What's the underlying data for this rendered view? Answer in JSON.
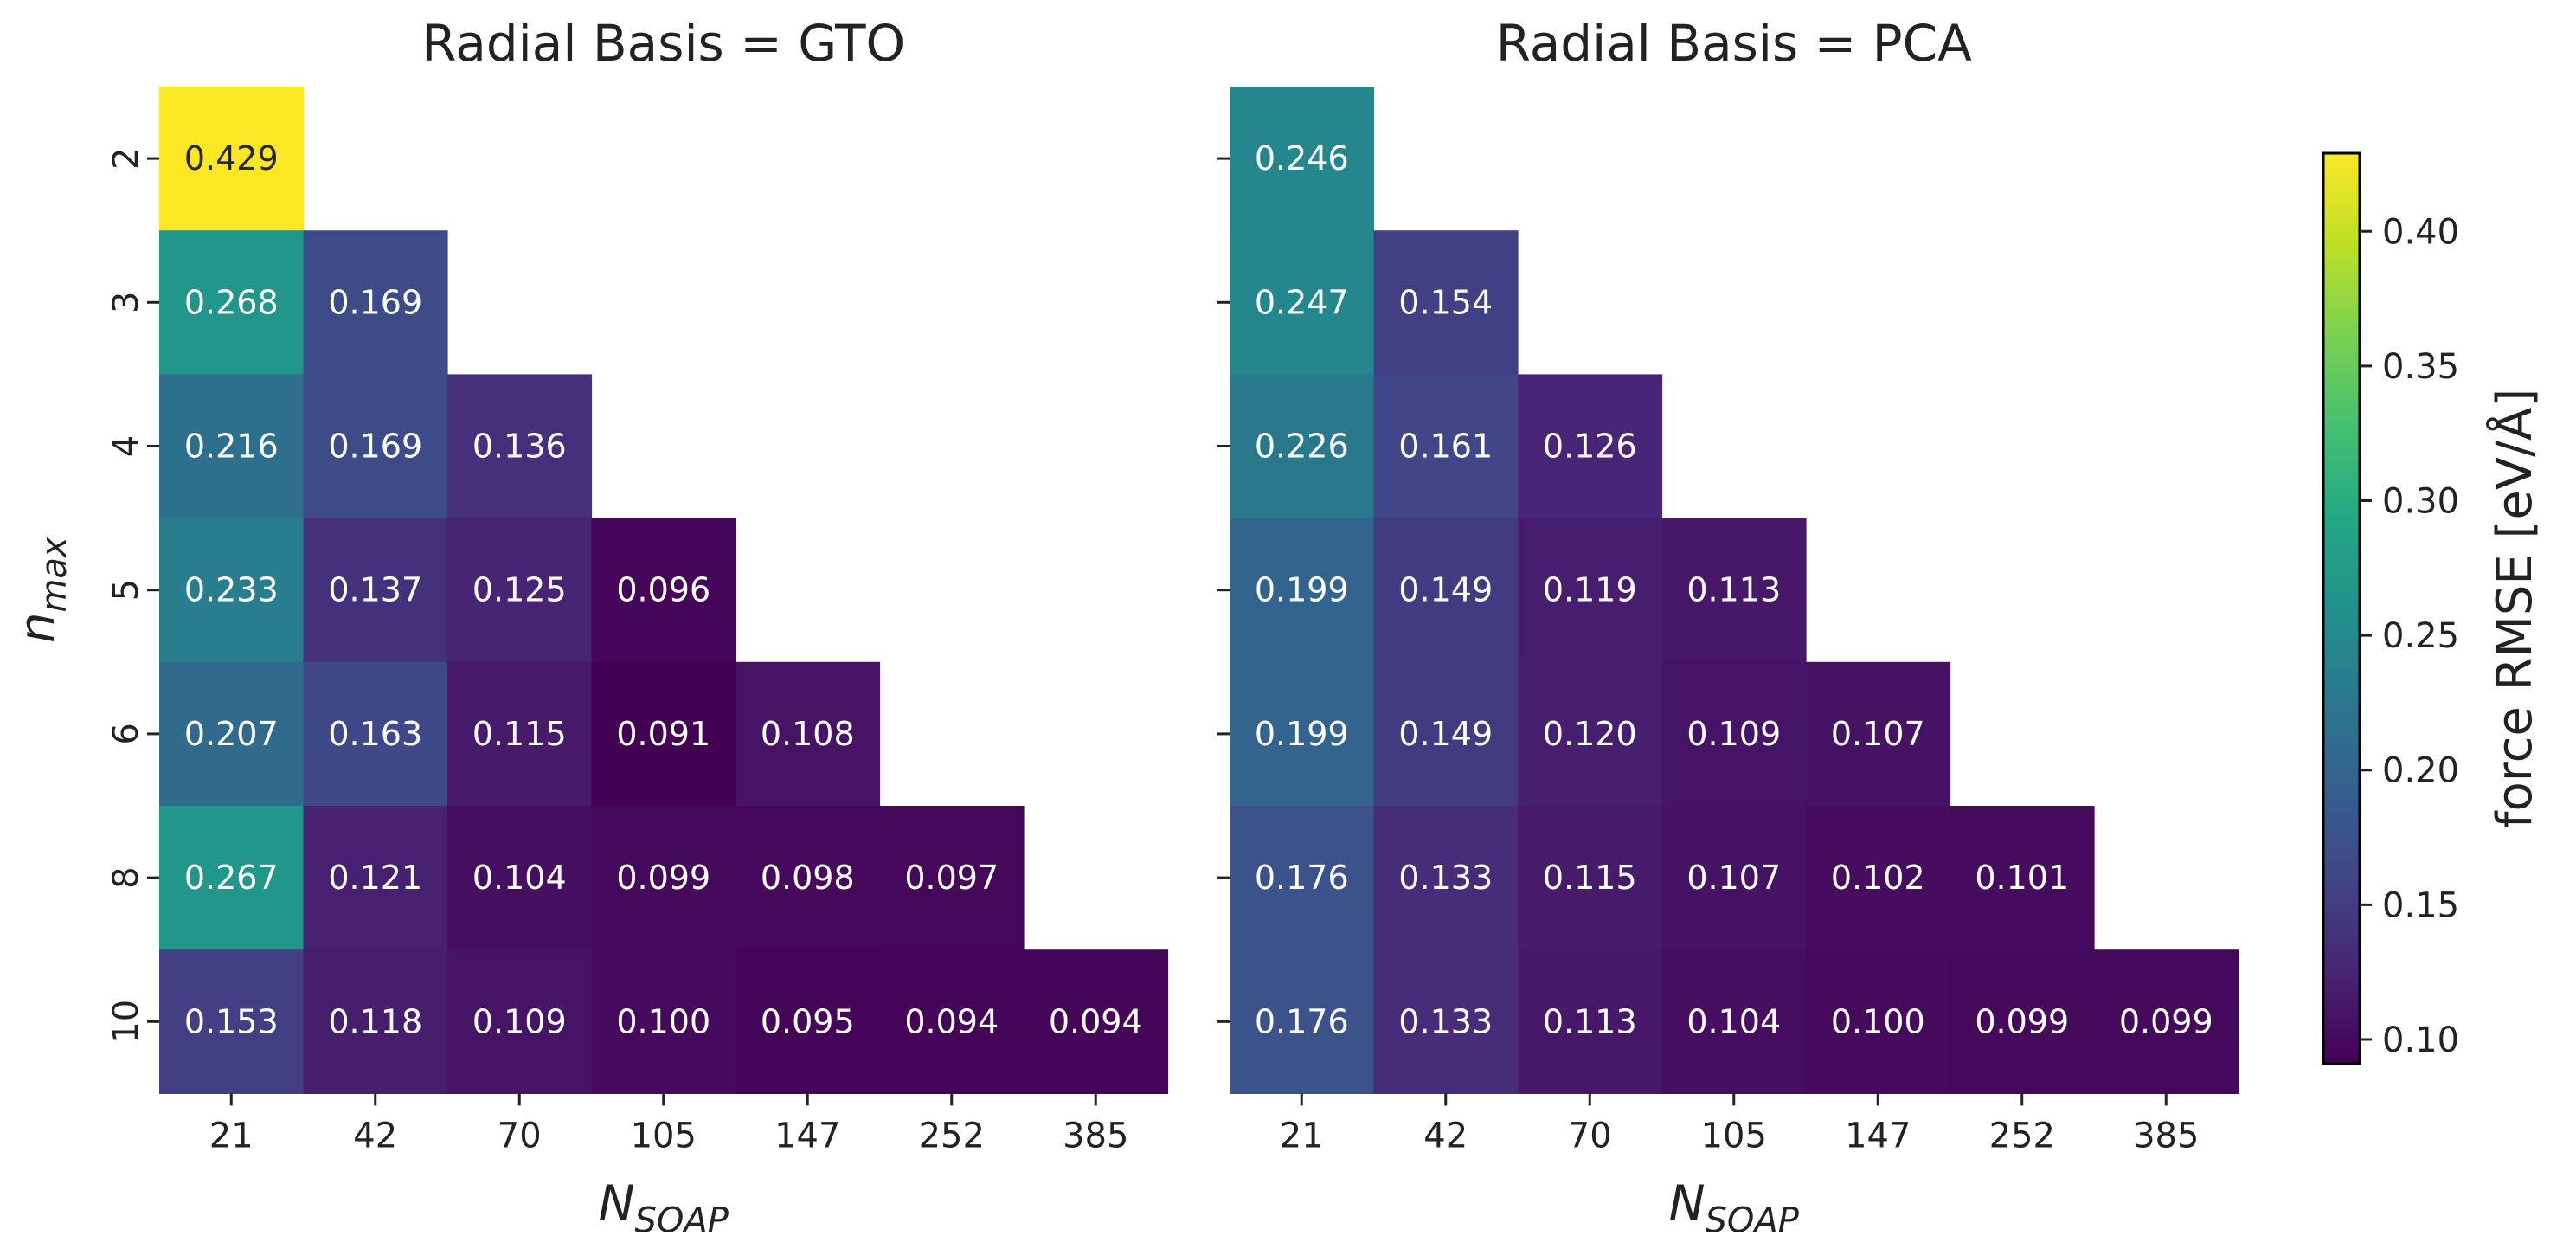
{
  "colors": {
    "colormap": "viridis",
    "background": "#ffffff",
    "axis_text": "#222222",
    "cell_text_light": "#ffffff",
    "cell_text_dark": "#262626"
  },
  "chart_data": [
    {
      "type": "heatmap",
      "title": "Radial Basis = GTO",
      "xlabel_main": "N",
      "xlabel_sub": "SOAP",
      "ylabel_main": "n",
      "ylabel_sub": "max",
      "x_categories": [
        "21",
        "42",
        "70",
        "105",
        "147",
        "252",
        "385"
      ],
      "y_categories": [
        "2",
        "3",
        "4",
        "5",
        "6",
        "8",
        "10"
      ],
      "values": [
        [
          0.429,
          null,
          null,
          null,
          null,
          null,
          null
        ],
        [
          0.268,
          0.169,
          null,
          null,
          null,
          null,
          null
        ],
        [
          0.216,
          0.169,
          0.136,
          null,
          null,
          null,
          null
        ],
        [
          0.233,
          0.137,
          0.125,
          0.096,
          null,
          null,
          null
        ],
        [
          0.207,
          0.163,
          0.115,
          0.091,
          0.108,
          null,
          null
        ],
        [
          0.267,
          0.121,
          0.104,
          0.099,
          0.098,
          0.097,
          null
        ],
        [
          0.153,
          0.118,
          0.109,
          0.1,
          0.095,
          0.094,
          0.094
        ]
      ],
      "labels": [
        [
          "0.429",
          "",
          "",
          "",
          "",
          "",
          ""
        ],
        [
          "0.268",
          "0.169",
          "",
          "",
          "",
          "",
          ""
        ],
        [
          "0.216",
          "0.169",
          "0.136",
          "",
          "",
          "",
          ""
        ],
        [
          "0.233",
          "0.137",
          "0.125",
          "0.096",
          "",
          "",
          ""
        ],
        [
          "0.207",
          "0.163",
          "0.115",
          "0.091",
          "0.108",
          "",
          ""
        ],
        [
          "0.267",
          "0.121",
          "0.104",
          "0.099",
          "0.098",
          "0.097",
          ""
        ],
        [
          "0.153",
          "0.118",
          "0.109",
          "0.100",
          "0.095",
          "0.094",
          "0.094"
        ]
      ],
      "show_yticklabels": true
    },
    {
      "type": "heatmap",
      "title": "Radial Basis = PCA",
      "xlabel_main": "N",
      "xlabel_sub": "SOAP",
      "x_categories": [
        "21",
        "42",
        "70",
        "105",
        "147",
        "252",
        "385"
      ],
      "y_categories": [
        "2",
        "3",
        "4",
        "5",
        "6",
        "8",
        "10"
      ],
      "values": [
        [
          0.246,
          null,
          null,
          null,
          null,
          null,
          null
        ],
        [
          0.247,
          0.154,
          null,
          null,
          null,
          null,
          null
        ],
        [
          0.226,
          0.161,
          0.126,
          null,
          null,
          null,
          null
        ],
        [
          0.199,
          0.149,
          0.119,
          0.113,
          null,
          null,
          null
        ],
        [
          0.199,
          0.149,
          0.12,
          0.109,
          0.107,
          null,
          null
        ],
        [
          0.176,
          0.133,
          0.115,
          0.107,
          0.102,
          0.101,
          null
        ],
        [
          0.176,
          0.133,
          0.113,
          0.104,
          0.1,
          0.099,
          0.099
        ]
      ],
      "labels": [
        [
          "0.246",
          "",
          "",
          "",
          "",
          "",
          ""
        ],
        [
          "0.247",
          "0.154",
          "",
          "",
          "",
          "",
          ""
        ],
        [
          "0.226",
          "0.161",
          "0.126",
          "",
          "",
          "",
          ""
        ],
        [
          "0.199",
          "0.149",
          "0.119",
          "0.113",
          "",
          "",
          ""
        ],
        [
          "0.199",
          "0.149",
          "0.120",
          "0.109",
          "0.107",
          "",
          ""
        ],
        [
          "0.176",
          "0.133",
          "0.115",
          "0.107",
          "0.102",
          "0.101",
          ""
        ],
        [
          "0.176",
          "0.133",
          "0.113",
          "0.104",
          "0.100",
          "0.099",
          "0.099"
        ]
      ],
      "show_yticklabels": false
    }
  ],
  "colorbar": {
    "label": "force RMSE [eV/Å]",
    "range": [
      0.091,
      0.429
    ],
    "ticks": [
      0.1,
      0.15,
      0.2,
      0.25,
      0.3,
      0.35,
      0.4
    ],
    "tick_labels": [
      "0.10",
      "0.15",
      "0.20",
      "0.25",
      "0.30",
      "0.35",
      "0.40"
    ]
  }
}
